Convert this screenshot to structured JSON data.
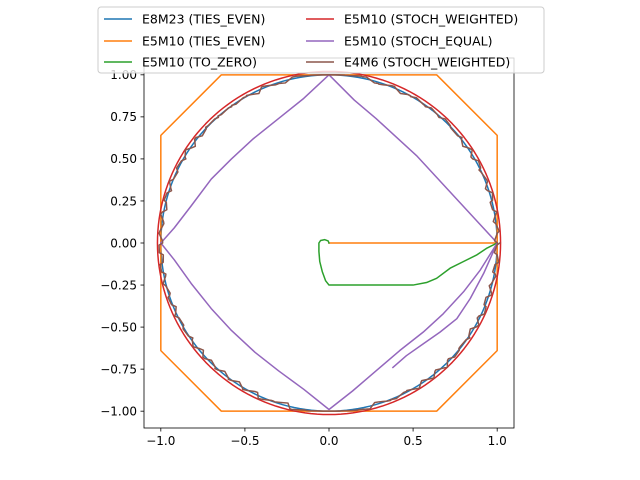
{
  "chart_data": {
    "type": "line",
    "title": "",
    "xlabel": "",
    "ylabel": "",
    "xlim": [
      -1.1,
      1.1
    ],
    "ylim": [
      -1.1,
      1.1
    ],
    "grid": false,
    "legend_position": "top-center",
    "x_ticks": [
      -1.0,
      -0.5,
      0.0,
      0.5,
      1.0
    ],
    "x_tick_labels": [
      "−1.0",
      "−0.5",
      "0.0",
      "0.5",
      "1.0"
    ],
    "y_ticks": [
      -1.0,
      -0.75,
      -0.5,
      -0.25,
      0.0,
      0.25,
      0.5,
      0.75,
      1.0
    ],
    "y_tick_labels": [
      "−1.00",
      "−0.75",
      "−0.50",
      "−0.25",
      "0.00",
      "0.25",
      "0.50",
      "0.75",
      "1.00"
    ],
    "series": [
      {
        "name": "E8M23 (TIES_EVEN)",
        "color": "#1f77b4",
        "shape": "circle",
        "radius": 1.0
      },
      {
        "name": "E5M10 (TIES_EVEN)",
        "color": "#ff7f0e",
        "shape": "polyline",
        "points": [
          [
            0.0,
            0.0
          ],
          [
            1.0,
            0.0
          ],
          [
            1.0,
            0.64
          ],
          [
            0.64,
            1.0
          ],
          [
            -0.64,
            1.0
          ],
          [
            -1.0,
            0.64
          ],
          [
            -1.0,
            -0.64
          ],
          [
            -0.64,
            -1.0
          ],
          [
            0.64,
            -1.0
          ],
          [
            1.0,
            -0.64
          ],
          [
            1.0,
            0.0
          ]
        ]
      },
      {
        "name": "E5M10 (TO_ZERO)",
        "color": "#2ca02c",
        "shape": "polyline",
        "points": [
          [
            1.0,
            0.0
          ],
          [
            0.94,
            -0.03
          ],
          [
            0.88,
            -0.07
          ],
          [
            0.8,
            -0.11
          ],
          [
            0.72,
            -0.15
          ],
          [
            0.64,
            -0.21
          ],
          [
            0.58,
            -0.235
          ],
          [
            0.5,
            -0.25
          ],
          [
            0.3,
            -0.25
          ],
          [
            0.0,
            -0.25
          ],
          [
            -0.02,
            -0.225
          ],
          [
            -0.04,
            -0.17
          ],
          [
            -0.055,
            -0.11
          ],
          [
            -0.06,
            -0.05
          ],
          [
            -0.06,
            0.0
          ],
          [
            -0.05,
            0.015
          ],
          [
            -0.025,
            0.02
          ],
          [
            -0.005,
            0.012
          ],
          [
            0.0,
            0.0
          ]
        ]
      },
      {
        "name": "E5M10 (STOCH_WEIGHTED)",
        "color": "#d62728",
        "shape": "circle",
        "radius": 1.02,
        "center": [
          0.0,
          0.0
        ]
      },
      {
        "name": "E5M10 (STOCH_EQUAL)",
        "color": "#9467bd",
        "shape": "polyline",
        "points": [
          [
            1.0,
            0.0
          ],
          [
            0.88,
            0.13
          ],
          [
            0.76,
            0.26
          ],
          [
            0.64,
            0.39
          ],
          [
            0.52,
            0.52
          ],
          [
            0.4,
            0.63
          ],
          [
            0.28,
            0.74
          ],
          [
            0.15,
            0.85
          ],
          [
            0.0,
            1.0
          ],
          [
            -0.15,
            0.86
          ],
          [
            -0.3,
            0.74
          ],
          [
            -0.45,
            0.62
          ],
          [
            -0.58,
            0.5
          ],
          [
            -0.7,
            0.38
          ],
          [
            -0.82,
            0.22
          ],
          [
            -0.92,
            0.09
          ],
          [
            -1.0,
            0.0
          ],
          [
            -0.92,
            -0.1
          ],
          [
            -0.82,
            -0.24
          ],
          [
            -0.7,
            -0.39
          ],
          [
            -0.58,
            -0.52
          ],
          [
            -0.44,
            -0.65
          ],
          [
            -0.3,
            -0.76
          ],
          [
            -0.15,
            -0.87
          ],
          [
            0.0,
            -0.99
          ],
          [
            0.14,
            -0.88
          ],
          [
            0.28,
            -0.76
          ],
          [
            0.42,
            -0.64
          ],
          [
            0.56,
            -0.53
          ],
          [
            0.68,
            -0.42
          ],
          [
            0.8,
            -0.29
          ],
          [
            0.9,
            -0.16
          ],
          [
            1.0,
            0.0
          ],
          [
            0.92,
            -0.18
          ],
          [
            0.84,
            -0.33
          ],
          [
            0.76,
            -0.45
          ],
          [
            0.66,
            -0.53
          ],
          [
            0.56,
            -0.6
          ],
          [
            0.46,
            -0.67
          ],
          [
            0.38,
            -0.74
          ]
        ]
      },
      {
        "name": "E4M6 (STOCH_WEIGHTED)",
        "color": "#8c564b",
        "shape": "jagged-circle",
        "radius": 1.0,
        "start_angle_deg": 0,
        "end_angle_deg": 360
      }
    ]
  }
}
